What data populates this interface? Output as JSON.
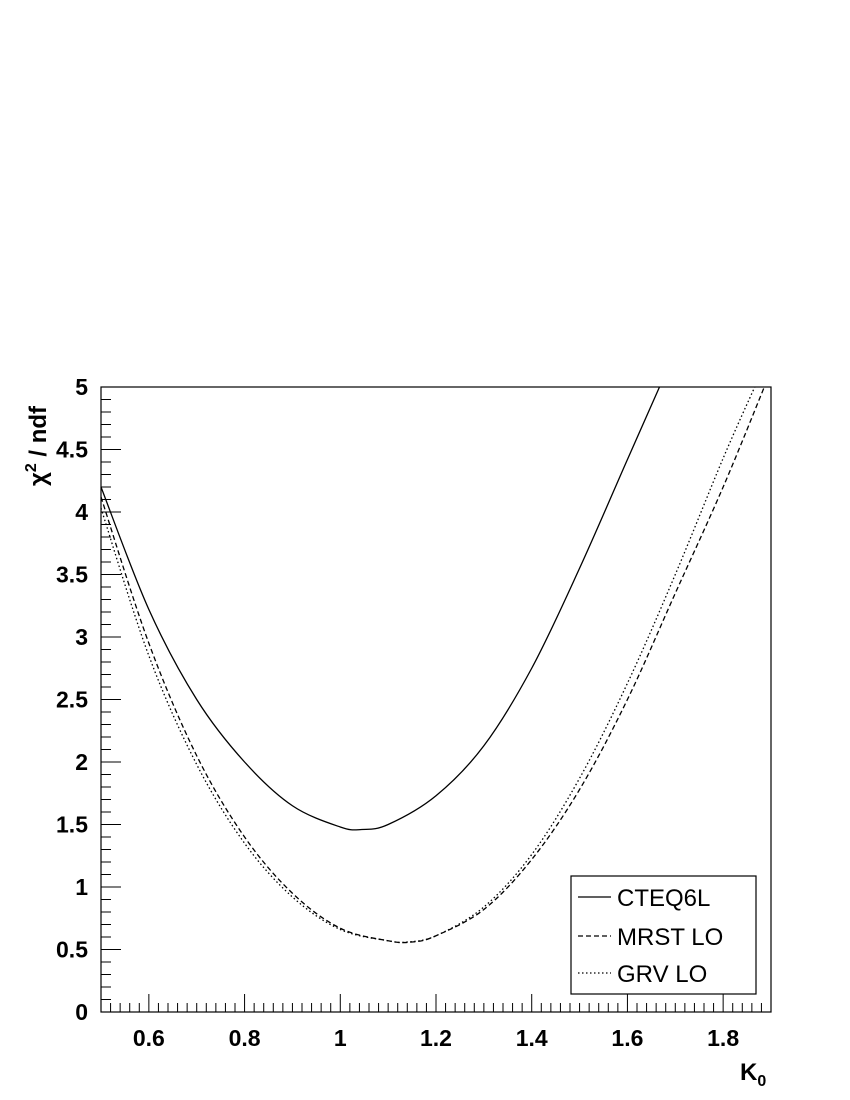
{
  "chart_data": {
    "type": "line",
    "xlabel": "K",
    "xlabel_sub": "0",
    "ylabel": "χ",
    "ylabel_sup": "2",
    "ylabel_rest": " / ndf",
    "xlim": [
      0.5,
      1.9
    ],
    "ylim": [
      0,
      5
    ],
    "x_ticks": [
      0.6,
      0.8,
      1.0,
      1.2,
      1.4,
      1.6,
      1.8
    ],
    "x_tick_labels": [
      "0.6",
      "0.8",
      "1",
      "1.2",
      "1.4",
      "1.6",
      "1.8"
    ],
    "y_ticks": [
      0,
      0.5,
      1,
      1.5,
      2,
      2.5,
      3,
      3.5,
      4,
      4.5,
      5
    ],
    "y_tick_labels": [
      "0",
      "0.5",
      "1",
      "1.5",
      "2",
      "2.5",
      "3",
      "3.5",
      "4",
      "4.5",
      "5"
    ],
    "grid": false,
    "legend_position": "bottom-right",
    "series": [
      {
        "name": "CTEQ6L",
        "style": "solid",
        "x": [
          0.5,
          0.6,
          0.7,
          0.8,
          0.9,
          1.0,
          1.045,
          1.1,
          1.2,
          1.3,
          1.4,
          1.5,
          1.6,
          1.667
        ],
        "y": [
          4.2,
          3.22,
          2.5,
          2.0,
          1.65,
          1.48,
          1.46,
          1.5,
          1.73,
          2.13,
          2.75,
          3.55,
          4.42,
          5.0
        ]
      },
      {
        "name": "MRST LO",
        "style": "dashed",
        "x": [
          0.5,
          0.6,
          0.7,
          0.8,
          0.9,
          1.0,
          1.1,
          1.15,
          1.2,
          1.3,
          1.4,
          1.5,
          1.6,
          1.7,
          1.8,
          1.886
        ],
        "y": [
          4.12,
          2.95,
          2.05,
          1.4,
          0.95,
          0.67,
          0.57,
          0.56,
          0.61,
          0.82,
          1.22,
          1.78,
          2.5,
          3.35,
          4.2,
          5.0
        ]
      },
      {
        "name": "GRV LO",
        "style": "dotted",
        "x": [
          0.5,
          0.6,
          0.7,
          0.8,
          0.9,
          1.0,
          1.1,
          1.14,
          1.2,
          1.3,
          1.4,
          1.5,
          1.6,
          1.7,
          1.8,
          1.866
        ],
        "y": [
          4.03,
          2.85,
          1.98,
          1.35,
          0.92,
          0.66,
          0.57,
          0.56,
          0.61,
          0.84,
          1.26,
          1.87,
          2.63,
          3.5,
          4.43,
          5.0
        ]
      }
    ]
  }
}
